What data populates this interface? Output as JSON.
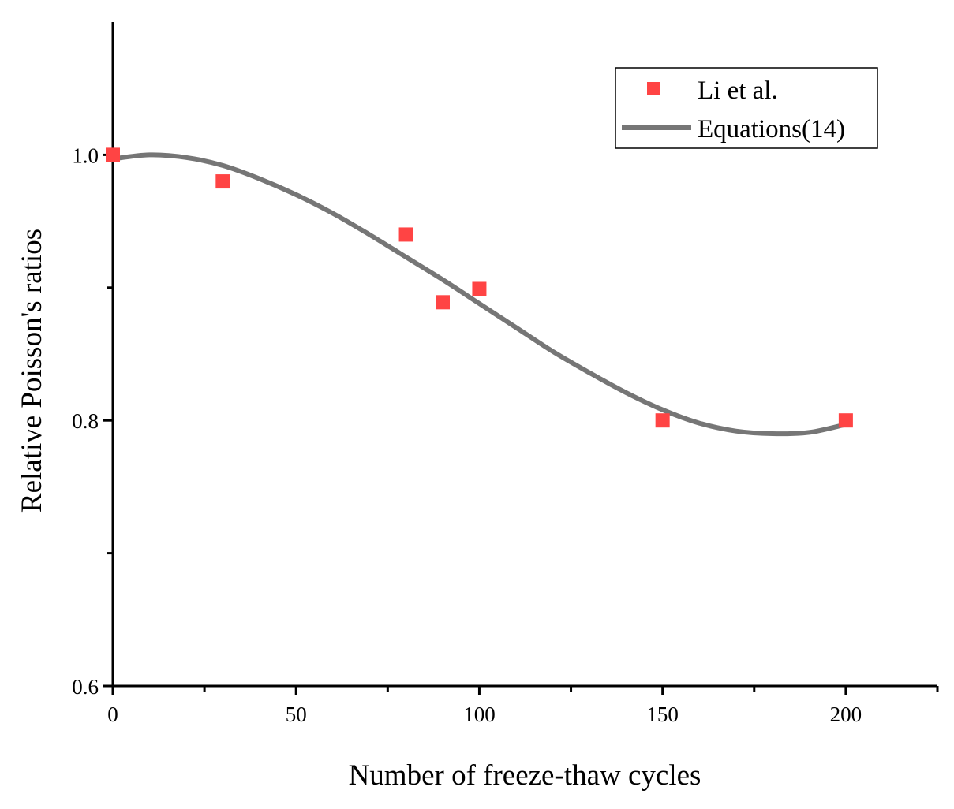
{
  "chart_data": {
    "type": "scatter",
    "title": "",
    "xlabel": "Number of freeze-thaw cycles",
    "ylabel": "Relative  Poisson's  ratios",
    "xlim": [
      0,
      225
    ],
    "ylim": [
      0.6,
      1.1
    ],
    "x_ticks_major": [
      0,
      50,
      100,
      150,
      200
    ],
    "x_tick_labels": [
      "0",
      "50",
      "100",
      "150",
      "200"
    ],
    "x_ticks_minor": [
      25,
      75,
      125,
      175,
      225
    ],
    "y_ticks_major": [
      0.6,
      0.8,
      1.0
    ],
    "y_tick_labels": [
      "0.6",
      "0.8",
      "1.0"
    ],
    "y_ticks_minor": [
      0.7,
      0.9
    ],
    "grid": false,
    "legend_position": "top-right",
    "series": [
      {
        "name": "Li et al.",
        "kind": "scatter",
        "marker": "square",
        "color": "#ff4444",
        "x": [
          0,
          30,
          80,
          90,
          100,
          150,
          200
        ],
        "y": [
          1.0,
          0.98,
          0.94,
          0.889,
          0.899,
          0.8,
          0.8
        ]
      },
      {
        "name": "Equations(14)",
        "kind": "line",
        "color": "#767676",
        "x": [
          0,
          10,
          20,
          30,
          40,
          50,
          60,
          70,
          80,
          90,
          100,
          110,
          120,
          130,
          140,
          150,
          160,
          170,
          180,
          190,
          200
        ],
        "y": [
          0.997,
          1.0,
          0.998,
          0.992,
          0.982,
          0.97,
          0.956,
          0.94,
          0.923,
          0.906,
          0.888,
          0.87,
          0.852,
          0.836,
          0.821,
          0.808,
          0.798,
          0.792,
          0.79,
          0.791,
          0.797
        ]
      }
    ]
  }
}
